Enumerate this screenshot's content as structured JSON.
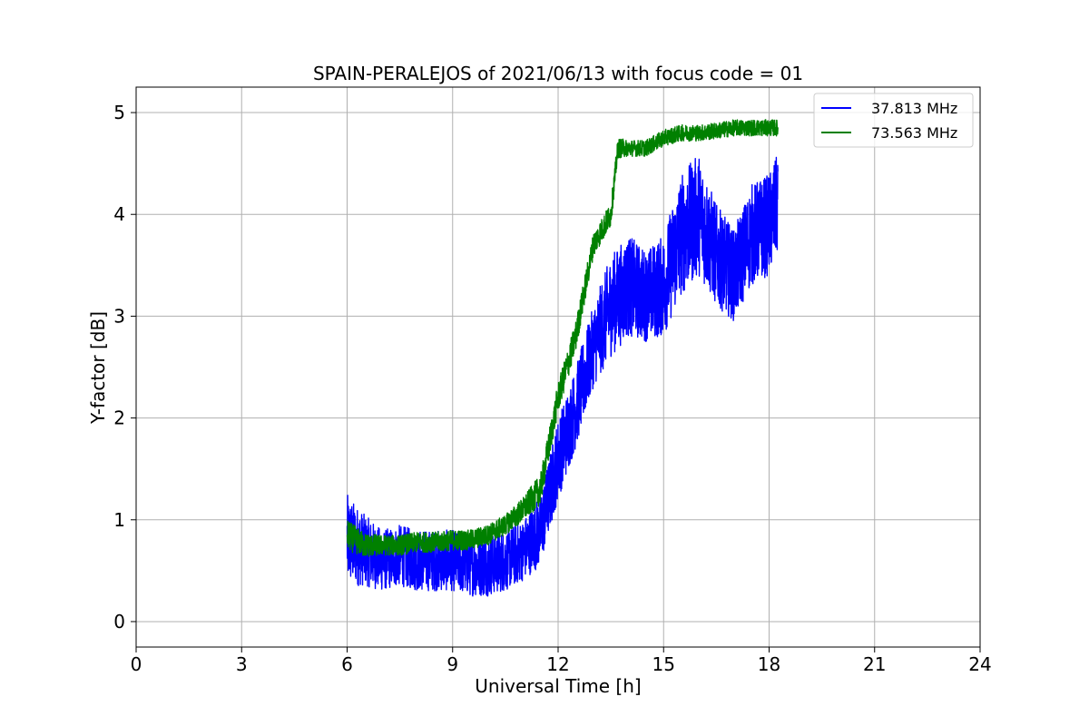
{
  "chart_data": {
    "type": "line",
    "title": "SPAIN-PERALEJOS of 2021/06/13 with focus code = 01",
    "xlabel": "Universal Time [h]",
    "ylabel": "Y-factor [dB]",
    "xlim": [
      0,
      24
    ],
    "ylim": [
      -0.25,
      5.25
    ],
    "xticks": [
      0,
      3,
      6,
      9,
      12,
      15,
      18,
      21,
      24
    ],
    "xtick_labels": [
      "0",
      "3",
      "6",
      "9",
      "12",
      "15",
      "18",
      "21",
      "24"
    ],
    "yticks": [
      0,
      1,
      2,
      3,
      4,
      5
    ],
    "ytick_labels": [
      "0",
      "1",
      "2",
      "3",
      "4",
      "5"
    ],
    "grid": true,
    "legend_position": "top-right",
    "series": [
      {
        "name": "37.813 MHz",
        "color": "#0000ff",
        "x": [
          6.0,
          6.5,
          7.0,
          7.5,
          8.0,
          8.5,
          9.0,
          9.5,
          10.0,
          10.5,
          11.0,
          11.5,
          12.0,
          12.5,
          13.0,
          13.5,
          14.0,
          14.5,
          15.0,
          15.5,
          16.0,
          16.5,
          17.0,
          17.5,
          18.0,
          18.25
        ],
        "y": [
          0.8,
          0.7,
          0.6,
          0.65,
          0.6,
          0.6,
          0.6,
          0.55,
          0.55,
          0.6,
          0.7,
          0.9,
          1.6,
          2.1,
          2.7,
          3.1,
          3.3,
          3.2,
          3.3,
          3.8,
          4.0,
          3.6,
          3.4,
          3.8,
          3.9,
          4.1
        ],
        "noise": [
          0.45,
          0.35,
          0.3,
          0.3,
          0.3,
          0.3,
          0.3,
          0.3,
          0.3,
          0.3,
          0.3,
          0.35,
          0.4,
          0.4,
          0.4,
          0.5,
          0.5,
          0.45,
          0.5,
          0.6,
          0.6,
          0.5,
          0.45,
          0.5,
          0.5,
          0.5
        ]
      },
      {
        "name": "73.563 MHz",
        "color": "#008000",
        "x": [
          6.0,
          6.5,
          7.0,
          7.5,
          8.0,
          8.5,
          9.0,
          9.5,
          10.0,
          10.5,
          11.0,
          11.5,
          12.0,
          12.5,
          13.0,
          13.5,
          13.7,
          14.0,
          14.5,
          15.0,
          15.5,
          16.0,
          16.5,
          17.0,
          17.5,
          18.0,
          18.25
        ],
        "y": [
          0.85,
          0.75,
          0.75,
          0.75,
          0.78,
          0.78,
          0.8,
          0.8,
          0.85,
          0.95,
          1.1,
          1.3,
          2.2,
          2.8,
          3.7,
          4.0,
          4.65,
          4.65,
          4.65,
          4.75,
          4.8,
          4.8,
          4.82,
          4.85,
          4.85,
          4.85,
          4.85
        ],
        "noise": [
          0.15,
          0.12,
          0.1,
          0.1,
          0.1,
          0.1,
          0.1,
          0.1,
          0.1,
          0.1,
          0.12,
          0.15,
          0.15,
          0.15,
          0.12,
          0.12,
          0.1,
          0.08,
          0.08,
          0.08,
          0.08,
          0.08,
          0.08,
          0.08,
          0.08,
          0.08,
          0.08
        ]
      }
    ]
  }
}
